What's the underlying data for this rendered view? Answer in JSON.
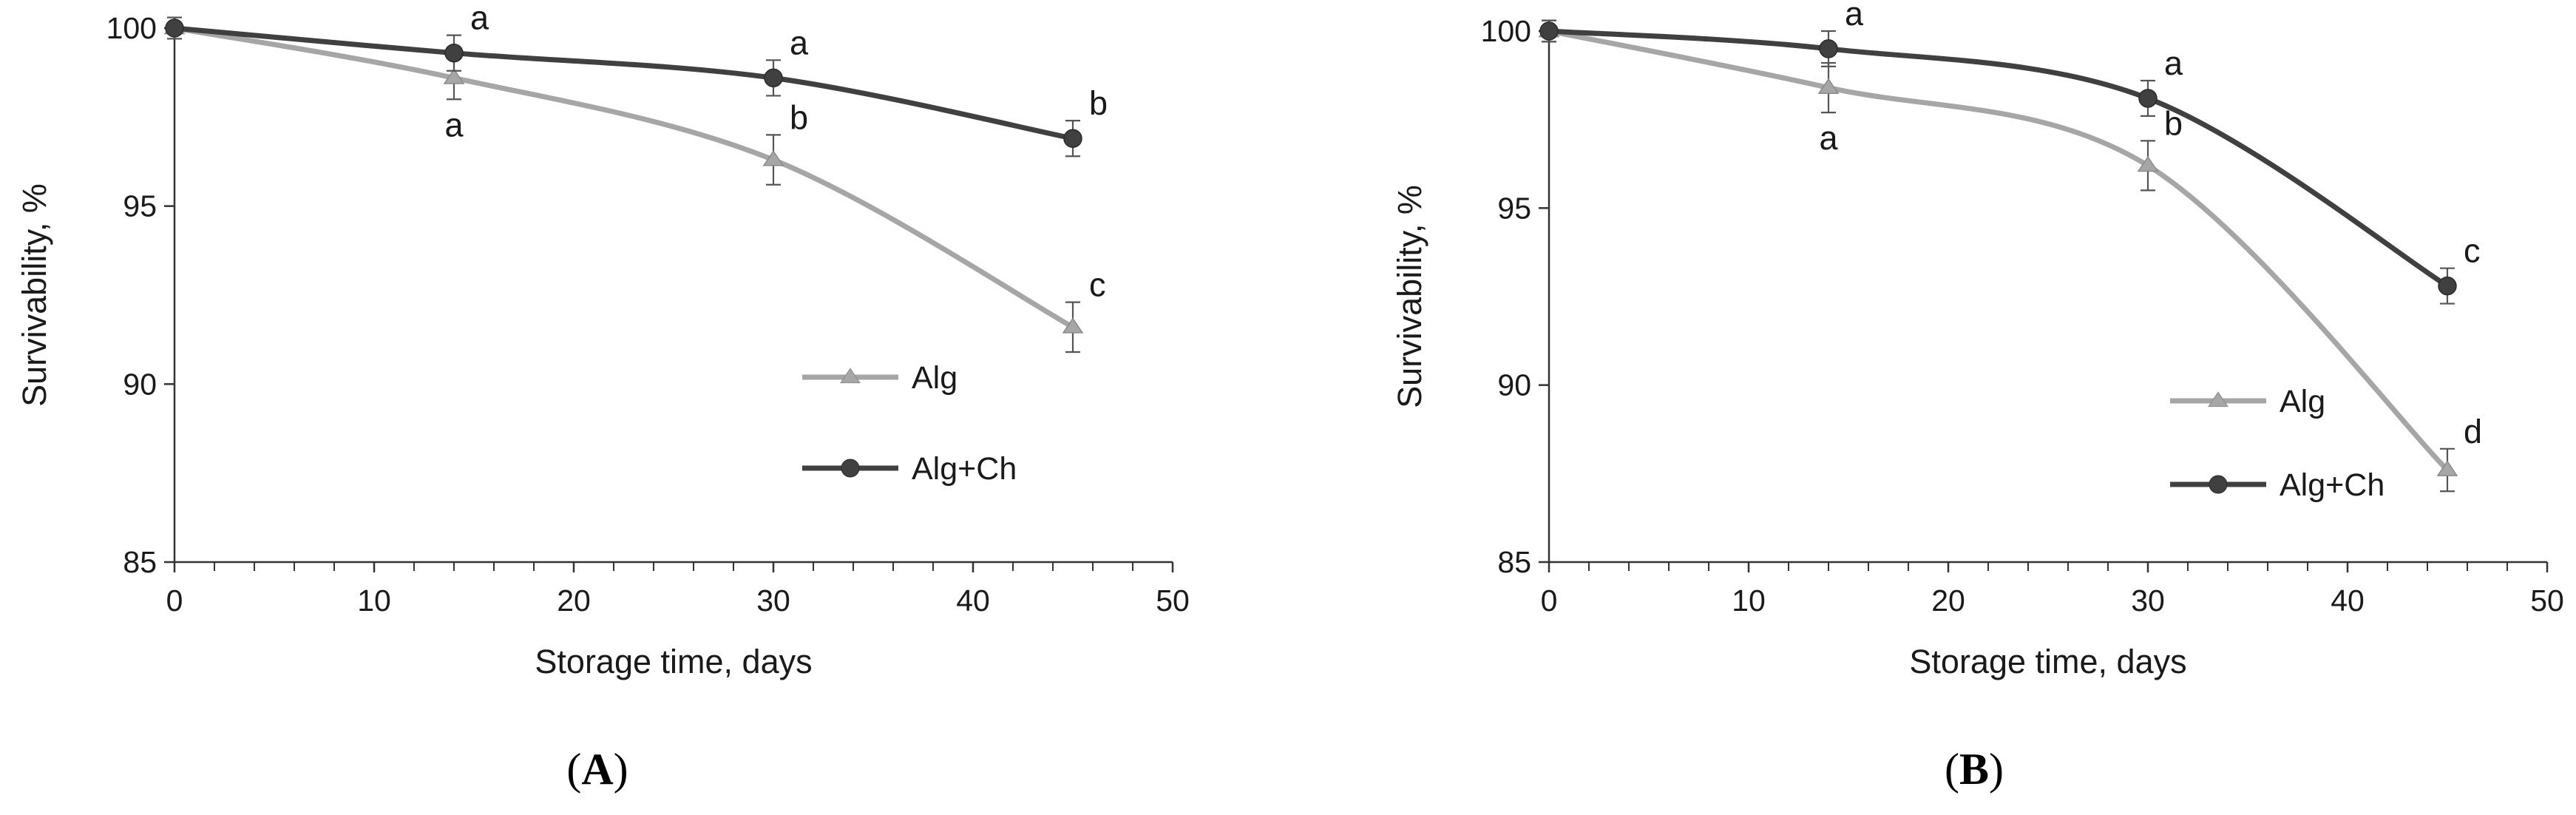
{
  "chart_data": [
    {
      "panel_label": "A",
      "type": "line",
      "x": [
        0,
        14,
        30,
        45
      ],
      "xlabel": "Storage time, days",
      "ylabel": "Survivability, %",
      "xlim": [
        0,
        50
      ],
      "ylim": [
        85,
        100
      ],
      "xticks": [
        0,
        10,
        20,
        30,
        40,
        50
      ],
      "yticks": [
        85,
        90,
        95,
        100
      ],
      "grid": false,
      "legend_position": "center-right",
      "series": [
        {
          "name": "Alg",
          "marker": "triangle",
          "color": "#a6a6a6",
          "values": [
            100,
            98.6,
            96.3,
            91.6
          ],
          "errors": [
            0.3,
            0.6,
            0.7,
            0.7
          ],
          "letters": [
            "",
            "a",
            "b",
            "c"
          ],
          "letter_positions": [
            "",
            "below",
            "above",
            "above"
          ]
        },
        {
          "name": "Alg+Ch",
          "marker": "circle",
          "color": "#404040",
          "values": [
            100,
            99.3,
            98.6,
            96.9
          ],
          "errors": [
            0.3,
            0.5,
            0.5,
            0.5
          ],
          "letters": [
            "",
            "a",
            "a",
            "b"
          ],
          "letter_positions": [
            "",
            "above",
            "above",
            "above"
          ]
        }
      ]
    },
    {
      "panel_label": "B",
      "type": "line",
      "x": [
        0,
        14,
        30,
        45
      ],
      "xlabel": "Storage time, days",
      "ylabel": "Survivability, %",
      "xlim": [
        0,
        50
      ],
      "ylim": [
        85,
        100
      ],
      "xticks": [
        0,
        10,
        20,
        30,
        40,
        50
      ],
      "yticks": [
        85,
        90,
        95,
        100
      ],
      "grid": false,
      "legend_position": "bottom-right",
      "series": [
        {
          "name": "Alg",
          "marker": "triangle",
          "color": "#a6a6a6",
          "values": [
            100,
            98.4,
            96.2,
            87.6
          ],
          "errors": [
            0.3,
            0.7,
            0.7,
            0.6
          ],
          "letters": [
            "",
            "a",
            "b",
            "d"
          ],
          "letter_positions": [
            "",
            "below",
            "above",
            "above"
          ]
        },
        {
          "name": "Alg+Ch",
          "marker": "circle",
          "color": "#404040",
          "values": [
            100,
            99.5,
            98.1,
            92.8
          ],
          "errors": [
            0.3,
            0.5,
            0.5,
            0.5
          ],
          "letters": [
            "",
            "a",
            "a",
            "c"
          ],
          "letter_positions": [
            "",
            "above",
            "above",
            "above"
          ]
        }
      ]
    }
  ]
}
